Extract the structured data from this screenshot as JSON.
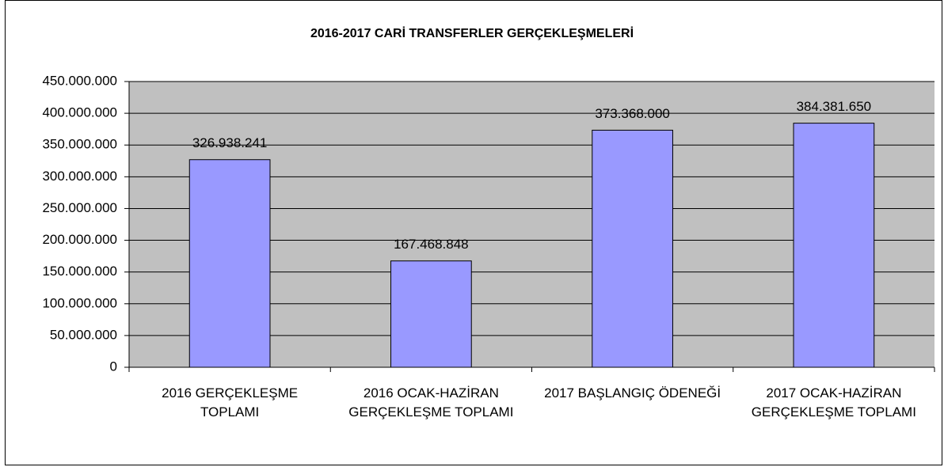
{
  "chart_data": {
    "type": "bar",
    "title": "2016-2017 CARİ TRANSFERLER GERÇEKLEŞMELERİ",
    "categories": [
      "2016 GERÇEKLEŞME TOPLAMI",
      "2016 OCAK-HAZİRAN GERÇEKLEŞME TOPLAMI",
      "2017 BAŞLANGIÇ ÖDENEĞİ",
      "2017 OCAK-HAZİRAN GERÇEKLEŞME TOPLAMI"
    ],
    "values": [
      326938241,
      167468848,
      373368000,
      384381650
    ],
    "value_labels": [
      "326.938.241",
      "167.468.848",
      "373.368.000",
      "384.381.650"
    ],
    "color": "#9999ff",
    "ylim": [
      0,
      450000000
    ],
    "yticks": [
      0,
      {
        "value": 50000000,
        "label": "50.000.000"
      },
      {
        "value": 100000000,
        "label": "100.000.000"
      },
      {
        "value": 150000000,
        "label": "150.000.000"
      },
      {
        "value": 200000000,
        "label": "200.000.000"
      },
      {
        "value": 250000000,
        "label": "250.000.000"
      },
      {
        "value": 300000000,
        "label": "300.000.000"
      },
      {
        "value": 350000000,
        "label": "350.000.000"
      },
      {
        "value": 400000000,
        "label": "400.000.000"
      },
      {
        "value": 450000000,
        "label": "450.000.000"
      }
    ],
    "grid": true
  }
}
